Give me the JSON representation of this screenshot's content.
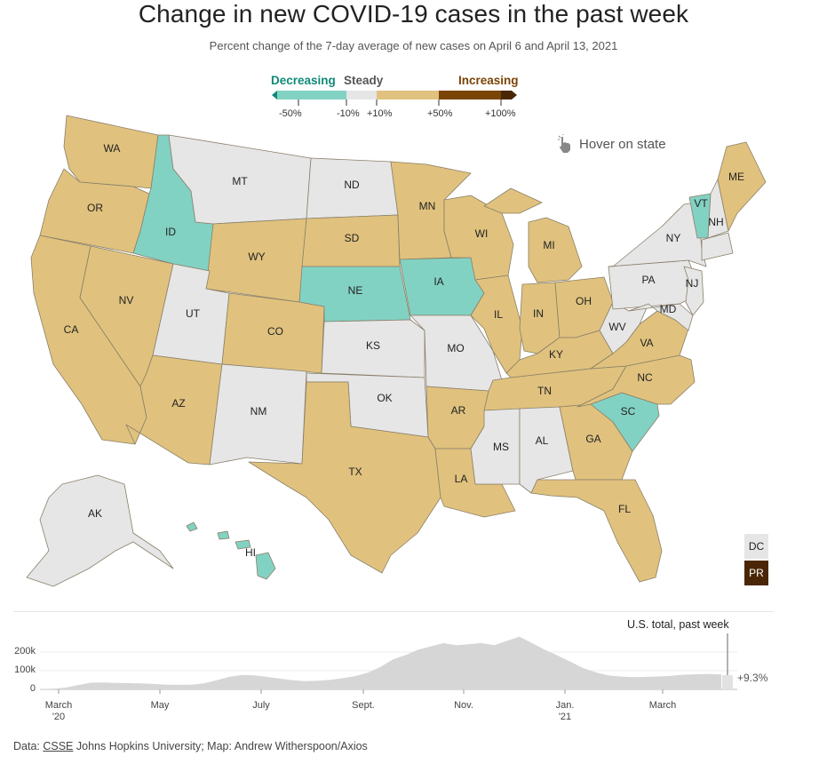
{
  "title": "Change in new COVID-19 cases in the past week",
  "subtitle": "Percent change of the 7-day average of new cases on April 6 and April 13, 2021",
  "legend": {
    "decreasing": "Decreasing",
    "steady": "Steady",
    "increasing": "Increasing",
    "ticks": [
      "-50%",
      "-10%",
      "+10%",
      "+50%",
      "+100%"
    ],
    "colors": {
      "strong_decrease": "#0f8a78",
      "decrease": "#82d2c3",
      "steady": "#e6e6e7",
      "increase": "#e0c27e",
      "strong_increase": "#7a4406",
      "extreme_increase": "#4a2606"
    }
  },
  "hover_hint": {
    "text": "Hover on state",
    "icon": "pointer-hand-icon"
  },
  "states": [
    {
      "abbr": "WA",
      "category": "increase"
    },
    {
      "abbr": "OR",
      "category": "increase"
    },
    {
      "abbr": "CA",
      "category": "increase"
    },
    {
      "abbr": "NV",
      "category": "increase"
    },
    {
      "abbr": "ID",
      "category": "decrease"
    },
    {
      "abbr": "MT",
      "category": "steady"
    },
    {
      "abbr": "WY",
      "category": "increase"
    },
    {
      "abbr": "UT",
      "category": "steady"
    },
    {
      "abbr": "AZ",
      "category": "increase"
    },
    {
      "abbr": "CO",
      "category": "increase"
    },
    {
      "abbr": "NM",
      "category": "steady"
    },
    {
      "abbr": "ND",
      "category": "steady"
    },
    {
      "abbr": "SD",
      "category": "increase"
    },
    {
      "abbr": "NE",
      "category": "decrease"
    },
    {
      "abbr": "KS",
      "category": "steady"
    },
    {
      "abbr": "OK",
      "category": "steady"
    },
    {
      "abbr": "TX",
      "category": "increase"
    },
    {
      "abbr": "MN",
      "category": "increase"
    },
    {
      "abbr": "IA",
      "category": "decrease"
    },
    {
      "abbr": "MO",
      "category": "steady"
    },
    {
      "abbr": "AR",
      "category": "increase"
    },
    {
      "abbr": "LA",
      "category": "increase"
    },
    {
      "abbr": "WI",
      "category": "increase"
    },
    {
      "abbr": "IL",
      "category": "increase"
    },
    {
      "abbr": "MI",
      "category": "increase"
    },
    {
      "abbr": "IN",
      "category": "increase"
    },
    {
      "abbr": "OH",
      "category": "increase"
    },
    {
      "abbr": "KY",
      "category": "increase"
    },
    {
      "abbr": "TN",
      "category": "increase"
    },
    {
      "abbr": "MS",
      "category": "steady"
    },
    {
      "abbr": "AL",
      "category": "steady"
    },
    {
      "abbr": "GA",
      "category": "increase"
    },
    {
      "abbr": "FL",
      "category": "increase"
    },
    {
      "abbr": "SC",
      "category": "decrease"
    },
    {
      "abbr": "NC",
      "category": "increase"
    },
    {
      "abbr": "VA",
      "category": "increase"
    },
    {
      "abbr": "WV",
      "category": "steady"
    },
    {
      "abbr": "PA",
      "category": "steady"
    },
    {
      "abbr": "NY",
      "category": "steady"
    },
    {
      "abbr": "NJ",
      "category": "steady"
    },
    {
      "abbr": "MD",
      "category": "steady"
    },
    {
      "abbr": "VT",
      "category": "decrease"
    },
    {
      "abbr": "NH",
      "category": "steady"
    },
    {
      "abbr": "ME",
      "category": "increase"
    },
    {
      "abbr": "AK",
      "category": "steady"
    },
    {
      "abbr": "HI",
      "category": "decrease"
    },
    {
      "abbr": "DC",
      "category": "steady"
    },
    {
      "abbr": "PR",
      "category": "extreme_increase"
    }
  ],
  "timeseries": {
    "label": "U.S. total, past week",
    "change": "+9.3%",
    "y_ticks": [
      "200k",
      "100k",
      "0"
    ],
    "y_range": [
      0,
      260000
    ],
    "x_ticks": [
      {
        "label": "March",
        "sub": "'20"
      },
      {
        "label": "May",
        "sub": ""
      },
      {
        "label": "July",
        "sub": ""
      },
      {
        "label": "Sept.",
        "sub": ""
      },
      {
        "label": "Nov.",
        "sub": ""
      },
      {
        "label": "Jan.",
        "sub": "'21"
      },
      {
        "label": "March",
        "sub": ""
      }
    ],
    "series": [
      1000,
      3000,
      8000,
      20000,
      31000,
      32000,
      30000,
      29000,
      28000,
      25000,
      22000,
      21000,
      22000,
      28000,
      42000,
      58000,
      67000,
      65000,
      58000,
      50000,
      43000,
      38000,
      40000,
      44000,
      52000,
      62000,
      78000,
      105000,
      140000,
      160000,
      185000,
      200000,
      215000,
      205000,
      210000,
      215000,
      205000,
      225000,
      245000,
      215000,
      185000,
      158000,
      130000,
      100000,
      80000,
      65000,
      60000,
      57000,
      58000,
      60000,
      63000,
      68000,
      70000,
      72000,
      69000
    ]
  },
  "footer": {
    "prefix": "Data: ",
    "link": "CSSE",
    "rest": " Johns Hopkins University; Map: Andrew Witherspoon/Axios"
  }
}
